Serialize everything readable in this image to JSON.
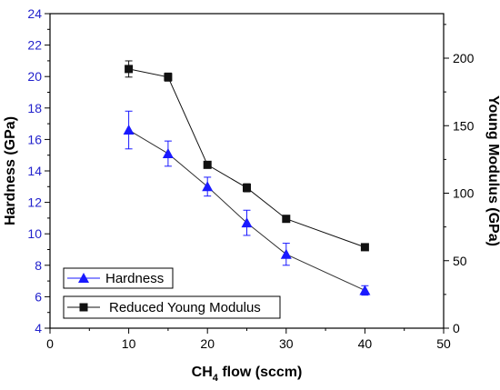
{
  "chart_data": {
    "type": "line",
    "x": [
      10,
      15,
      20,
      25,
      30,
      40
    ],
    "xlabel_prefix": "CH",
    "xlabel_sub": "4",
    "xlabel_suffix": " flow (sccm)",
    "ylabel": "Hardness (GPa)",
    "y2label": "Young Modulus (GPa)",
    "xlim": [
      0,
      50
    ],
    "ylim": [
      4,
      24
    ],
    "y2lim": [
      0,
      233
    ],
    "xticks": [
      "0",
      "10",
      "20",
      "30",
      "40",
      "50"
    ],
    "yticks": [
      "4",
      "6",
      "8",
      "10",
      "12",
      "14",
      "16",
      "18",
      "20",
      "22",
      "24"
    ],
    "y2ticks": [
      "0",
      "50",
      "100",
      "150",
      "200"
    ],
    "grid": false,
    "legend_position": "bottom-left",
    "series": [
      {
        "name": "Hardness",
        "axis": "left",
        "marker": "triangle",
        "color": "#1a1aff",
        "values": [
          16.6,
          15.1,
          13.0,
          10.7,
          8.7,
          6.4
        ],
        "errors": [
          1.2,
          0.8,
          0.6,
          0.8,
          0.7,
          0.3
        ]
      },
      {
        "name": "Reduced Young Modulus",
        "axis": "right",
        "marker": "square",
        "color": "#111111",
        "values": [
          192,
          186,
          121,
          104,
          81,
          60
        ],
        "errors": [
          6,
          3,
          2.5,
          3,
          2.5,
          1
        ]
      }
    ]
  }
}
